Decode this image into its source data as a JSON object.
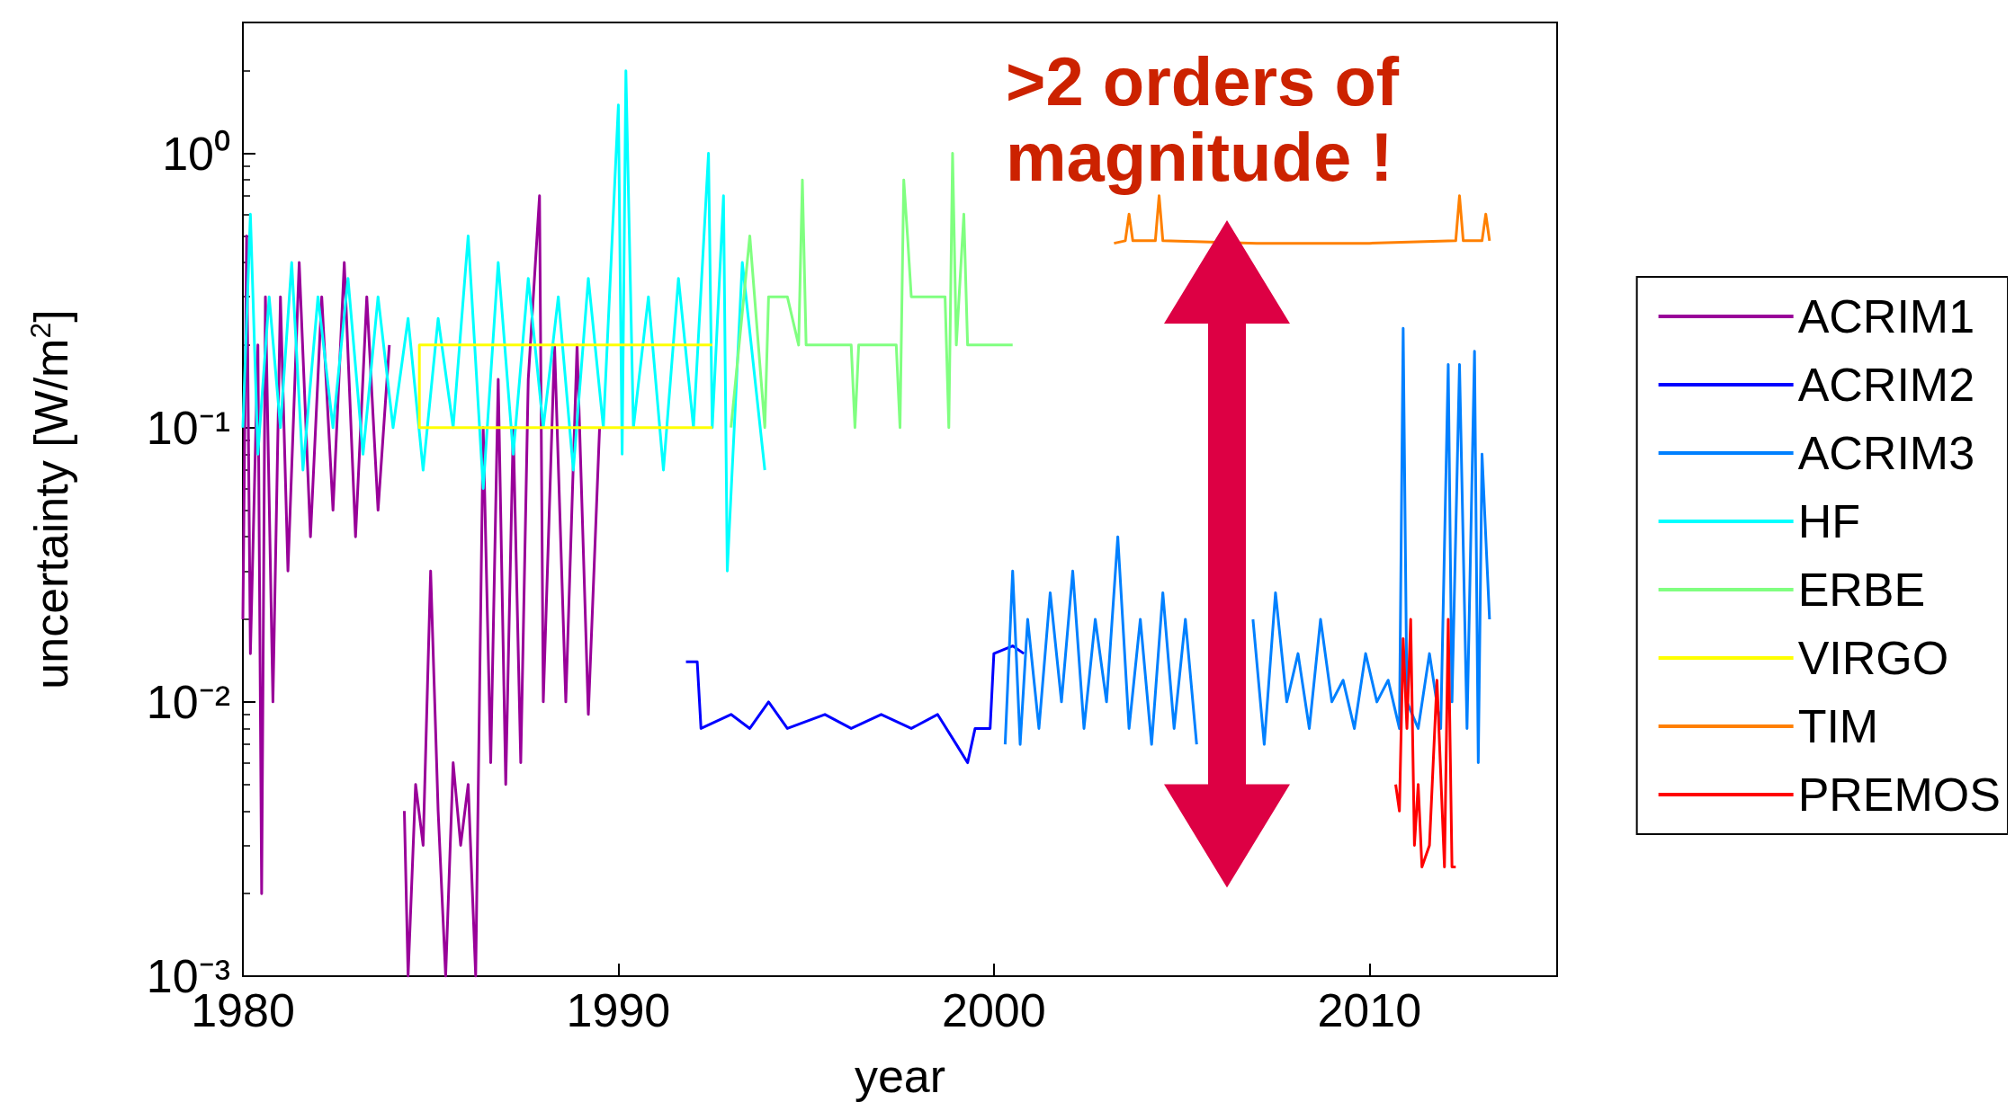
{
  "chart_data": {
    "type": "line",
    "xlabel": "year",
    "ylabel": "uncertainty [W/m$^{2}$]",
    "log": "y",
    "grid": false,
    "legend": "right",
    "marker": "none",
    "line_style": "solid",
    "xlim": [
      1980,
      2015
    ],
    "xticks": [
      1980,
      1990,
      2000,
      2010
    ],
    "ylim": [
      0.001,
      3
    ],
    "yticks": [
      {
        "value": 0.001,
        "label": "10⁻³"
      },
      {
        "value": 0.01,
        "label": "10⁻²"
      },
      {
        "value": 0.1,
        "label": "10⁻¹"
      },
      {
        "value": 1,
        "label": "10⁰"
      }
    ],
    "annotations": [
      ">2 orders of magnitude !"
    ],
    "series": [
      {
        "name": "ACRIM1",
        "color": "#990099",
        "x": [
          1980.0,
          1980.1,
          1980.2,
          1980.4,
          1980.5,
          1980.6,
          1980.8,
          1981.0,
          1981.2,
          1981.5,
          1981.8,
          1982.1,
          1982.4,
          1982.7,
          1983.0,
          1983.3,
          1983.6,
          1983.9,
          1984.1,
          1984.3,
          1984.4,
          1984.6,
          1984.8,
          1985.0,
          1985.2,
          1985.4,
          1985.6,
          1985.8,
          1986.0,
          1986.2,
          1986.4,
          1986.6,
          1986.8,
          1987.0,
          1987.2,
          1987.4,
          1987.6,
          1987.9,
          1988.0,
          1988.3,
          1988.6,
          1988.9,
          1989.2,
          1989.5
        ],
        "values": [
          0.02,
          0.5,
          0.015,
          0.2,
          0.002,
          0.3,
          0.01,
          0.3,
          0.03,
          0.4,
          0.04,
          0.3,
          0.05,
          0.4,
          0.04,
          0.3,
          0.05,
          0.2,
          null,
          0.004,
          0.001,
          0.005,
          0.003,
          0.03,
          0.004,
          0.001,
          0.006,
          0.003,
          0.005,
          0.001,
          0.1,
          0.006,
          0.15,
          0.005,
          0.1,
          0.006,
          0.15,
          0.7,
          0.01,
          0.2,
          0.01,
          0.2,
          0.009,
          0.1
        ]
      },
      {
        "name": "ACRIM2",
        "color": "#0000ff",
        "x": [
          1991.8,
          1992.1,
          1992.2,
          1993.0,
          1993.5,
          1994.0,
          1994.5,
          1995.5,
          1996.2,
          1997.0,
          1997.8,
          1998.5,
          1999.0,
          1999.3,
          1999.5,
          1999.9,
          2000.0,
          2000.5,
          2000.8
        ],
        "values": [
          0.014,
          0.014,
          0.008,
          0.009,
          0.008,
          0.01,
          0.008,
          0.009,
          0.008,
          0.009,
          0.008,
          0.009,
          0.007,
          0.006,
          0.008,
          0.008,
          0.015,
          0.016,
          0.015
        ]
      },
      {
        "name": "ACRIM3",
        "color": "#0080ff",
        "x": [
          2000.3,
          2000.5,
          2000.7,
          2000.9,
          2001.2,
          2001.5,
          2001.8,
          2002.1,
          2002.4,
          2002.7,
          2003.0,
          2003.3,
          2003.6,
          2003.9,
          2004.2,
          2004.5,
          2004.8,
          2005.1,
          2005.4,
          2005.7,
          2006.0,
          2006.3,
          2006.6,
          2006.9,
          2007.2,
          2007.5,
          2007.8,
          2008.1,
          2008.4,
          2008.7,
          2009.0,
          2009.3,
          2009.6,
          2009.9,
          2010.2,
          2010.5,
          2010.8,
          2010.9,
          2011.0,
          2011.3,
          2011.6,
          2011.9,
          2012.1,
          2012.2,
          2012.4,
          2012.6,
          2012.8,
          2012.9,
          2013.0,
          2013.2
        ],
        "values": [
          0.007,
          0.03,
          0.007,
          0.02,
          0.008,
          0.025,
          0.01,
          0.03,
          0.008,
          0.02,
          0.01,
          0.04,
          0.008,
          0.02,
          0.007,
          0.025,
          0.008,
          0.02,
          0.007,
          null,
          null,
          null,
          null,
          0.02,
          0.007,
          0.025,
          0.01,
          0.015,
          0.008,
          0.02,
          0.01,
          0.012,
          0.008,
          0.015,
          0.01,
          0.012,
          0.008,
          0.23,
          0.01,
          0.008,
          0.015,
          0.008,
          0.17,
          0.01,
          0.17,
          0.008,
          0.19,
          0.006,
          0.08,
          0.02
        ]
      },
      {
        "name": "HF",
        "color": "#00ffff",
        "x": [
          1980.0,
          1980.2,
          1980.4,
          1980.7,
          1981.0,
          1981.3,
          1981.6,
          1982.0,
          1982.4,
          1982.8,
          1983.2,
          1983.6,
          1984.0,
          1984.4,
          1984.8,
          1985.2,
          1985.6,
          1986.0,
          1986.4,
          1986.8,
          1987.2,
          1987.6,
          1988.0,
          1988.4,
          1988.8,
          1989.2,
          1989.6,
          1990.0,
          1990.1,
          1990.2,
          1990.4,
          1990.8,
          1991.2,
          1991.6,
          1992.0,
          1992.4,
          1992.5,
          1992.8,
          1992.9,
          1993.3,
          1993.9
        ],
        "values": [
          0.1,
          0.6,
          0.08,
          0.3,
          0.1,
          0.4,
          0.07,
          0.3,
          0.1,
          0.35,
          0.08,
          0.3,
          0.1,
          0.25,
          0.07,
          0.25,
          0.1,
          0.5,
          0.06,
          0.4,
          0.08,
          0.35,
          0.1,
          0.3,
          0.07,
          0.35,
          0.1,
          1.5,
          0.08,
          2.0,
          0.1,
          0.3,
          0.07,
          0.35,
          0.1,
          1.0,
          0.1,
          0.7,
          0.03,
          0.4,
          0.07
        ]
      },
      {
        "name": "ERBE",
        "color": "#80ff80",
        "x": [
          1993.0,
          1993.5,
          1993.9,
          1994.0,
          1994.5,
          1994.8,
          1994.9,
          1995.0,
          1996.2,
          1996.3,
          1996.4,
          1997.4,
          1997.5,
          1997.6,
          1997.7,
          1997.8,
          1998.7,
          1998.8,
          1998.9,
          1999.0,
          1999.2,
          1999.3,
          2000.5
        ],
        "values": [
          0.1,
          0.5,
          0.1,
          0.3,
          0.3,
          0.2,
          0.8,
          0.2,
          0.2,
          0.1,
          0.2,
          0.2,
          0.1,
          0.8,
          0.5,
          0.3,
          0.3,
          0.1,
          1.0,
          0.2,
          0.6,
          0.2,
          0.2
        ]
      },
      {
        "name": "VIRGO",
        "color": "#ffff00",
        "x": [
          1992.5,
          1984.7,
          1984.7,
          1992.5
        ],
        "values": [
          0.1,
          0.1,
          0.2,
          0.2
        ]
      },
      {
        "name": "TIM",
        "color": "#ff8000",
        "x": [
          2003.2,
          2003.5,
          2003.6,
          2003.7,
          2004.3,
          2004.4,
          2004.5,
          2007.0,
          2010.0,
          2012.3,
          2012.4,
          2012.5,
          2013.0,
          2013.1,
          2013.2
        ],
        "values": [
          0.47,
          0.48,
          0.6,
          0.48,
          0.48,
          0.7,
          0.48,
          0.47,
          0.47,
          0.48,
          0.7,
          0.48,
          0.48,
          0.6,
          0.48
        ]
      },
      {
        "name": "PREMOS",
        "color": "#ff0000",
        "x": [
          2010.7,
          2010.8,
          2010.9,
          2011.0,
          2011.1,
          2011.2,
          2011.3,
          2011.4,
          2011.6,
          2011.8,
          2012.0,
          2012.1,
          2012.2,
          2012.3
        ],
        "values": [
          0.005,
          0.004,
          0.017,
          0.008,
          0.02,
          0.003,
          0.005,
          0.0025,
          0.003,
          0.012,
          0.0025,
          0.02,
          0.0025,
          0.0025
        ]
      }
    ]
  }
}
